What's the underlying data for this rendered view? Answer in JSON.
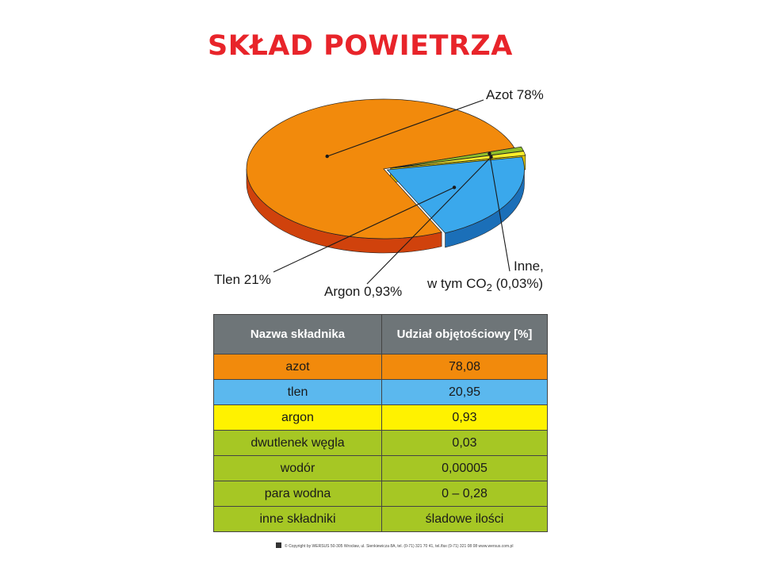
{
  "title": "SKŁAD POWIETRZA",
  "chart_data": {
    "type": "pie",
    "title": "SKŁAD POWIETRZA",
    "slices": [
      {
        "key": "azot",
        "label": "Azot 78%",
        "value": 78,
        "color": "#f28a0c",
        "side": "#d0420c"
      },
      {
        "key": "inne",
        "label": "Inne, w tym CO2 (0,03%)",
        "value": 0.07,
        "color": "#8fbf2a",
        "side": "#4e8a16"
      },
      {
        "key": "argon",
        "label": "Argon 0,93%",
        "value": 0.93,
        "color": "#fbee2a",
        "side": "#dcc400"
      },
      {
        "key": "tlen",
        "label": "Tlen 21%",
        "value": 21,
        "color": "#3aa8ec",
        "side": "#1b6fb8"
      }
    ]
  },
  "labels": {
    "azot": "Azot 78%",
    "tlen": "Tlen 21%",
    "argon": "Argon 0,93%",
    "inne_line1": "Inne,",
    "inne_line2_a": "w tym CO",
    "inne_line2_sub": "2",
    "inne_line2_b": " (0,03%)"
  },
  "table": {
    "headers": [
      "Nazwa składnika",
      "Udział objętościowy [%]"
    ],
    "rows": [
      {
        "name": "azot",
        "value": "78,08",
        "color": "#f28a0c"
      },
      {
        "name": "tlen",
        "value": "20,95",
        "color": "#5bb8ee"
      },
      {
        "name": "argon",
        "value": "0,93",
        "color": "#fff200"
      },
      {
        "name": "dwutlenek węgla",
        "value": "0,03",
        "color": "#a6c724"
      },
      {
        "name": "wodór",
        "value": "0,00005",
        "color": "#a6c724"
      },
      {
        "name": "para wodna",
        "value": "0 – 0,28",
        "color": "#a6c724"
      },
      {
        "name": "inne składniki",
        "value": "śladowe ilości",
        "color": "#a6c724"
      }
    ]
  },
  "footer": "© Copyright by WERSUS   50-305 Wrocław, ul. Sienkiewicza 8A, tel. (0-71) 321 70 41, tel./fax (0-71) 321 08 08   www.wersus.com.pl"
}
